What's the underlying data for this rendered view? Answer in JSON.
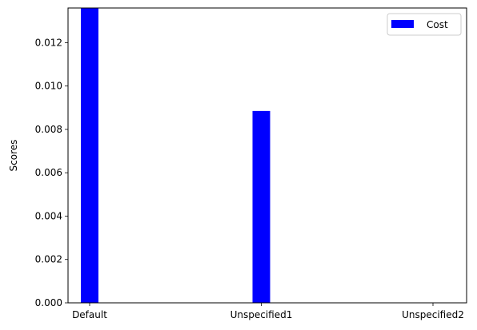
{
  "chart_data": {
    "type": "bar",
    "categories": [
      "Default",
      "Unspecified1",
      "Unspecified2"
    ],
    "series": [
      {
        "name": "Cost",
        "values": [
          0.0136,
          0.00885,
          0
        ],
        "color": "#0000ff"
      }
    ],
    "title": "",
    "xlabel": "",
    "ylabel": "Scores",
    "ylim": [
      0,
      0.0136
    ],
    "yticks": [
      0.0,
      0.002,
      0.004,
      0.006,
      0.008,
      0.01,
      0.012
    ],
    "ytick_labels": [
      "0.000",
      "0.002",
      "0.004",
      "0.006",
      "0.008",
      "0.010",
      "0.012"
    ],
    "grid": false,
    "legend": {
      "placement": "top-right",
      "entries": [
        "Cost"
      ]
    }
  }
}
